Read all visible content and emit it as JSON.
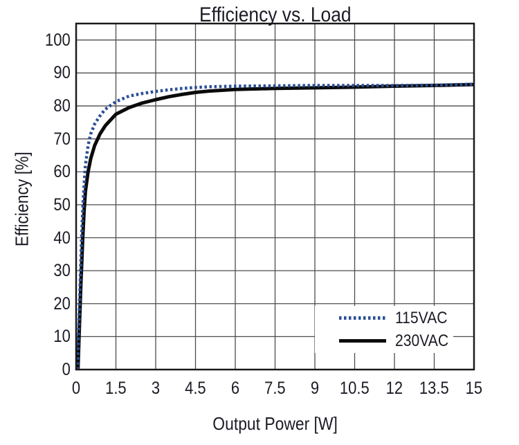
{
  "title": "Efficiency vs. Load",
  "chart_data": {
    "type": "line",
    "title": "Efficiency vs. Load",
    "xlabel": "Output Power [W]",
    "ylabel": "Efficiency [%]",
    "xlim": [
      0,
      15
    ],
    "ylim": [
      0,
      105
    ],
    "x_ticks": [
      0,
      1.5,
      3,
      4.5,
      6,
      7.5,
      9,
      10.5,
      12,
      13.5,
      15
    ],
    "x_tick_labels": [
      "0",
      "1.5",
      "3",
      "4.5",
      "6",
      "7.5",
      "9",
      "10.5",
      "12",
      "13.5",
      "15"
    ],
    "y_ticks": [
      0,
      10,
      20,
      30,
      40,
      50,
      60,
      70,
      80,
      90,
      100
    ],
    "y_tick_labels": [
      "0",
      "10",
      "20",
      "30",
      "40",
      "50",
      "60",
      "70",
      "80",
      "90",
      "100"
    ],
    "grid": true,
    "legend_position": "lower-right",
    "series": [
      {
        "name": "115VAC",
        "style": "dotted",
        "color": "#2b4f96",
        "points": [
          [
            0.05,
            0
          ],
          [
            0.1,
            12
          ],
          [
            0.15,
            26
          ],
          [
            0.2,
            39
          ],
          [
            0.25,
            49
          ],
          [
            0.3,
            56
          ],
          [
            0.35,
            62
          ],
          [
            0.45,
            68
          ],
          [
            0.55,
            71.5
          ],
          [
            0.7,
            74.5
          ],
          [
            0.9,
            77
          ],
          [
            1.1,
            79
          ],
          [
            1.5,
            81.3
          ],
          [
            2,
            83
          ],
          [
            2.5,
            83.8
          ],
          [
            3,
            84.4
          ],
          [
            3.5,
            84.9
          ],
          [
            4,
            85.3
          ],
          [
            4.5,
            85.6
          ],
          [
            5,
            85.8
          ],
          [
            6,
            86.0
          ],
          [
            7.5,
            86.1
          ],
          [
            9,
            86.2
          ],
          [
            10.5,
            86.2
          ],
          [
            12,
            86.2
          ],
          [
            13.5,
            86.3
          ],
          [
            15,
            86.6
          ]
        ]
      },
      {
        "name": "230VAC",
        "style": "solid",
        "color": "#0b0b0b",
        "points": [
          [
            0.07,
            0
          ],
          [
            0.12,
            12
          ],
          [
            0.18,
            26
          ],
          [
            0.25,
            40
          ],
          [
            0.3,
            48
          ],
          [
            0.35,
            54
          ],
          [
            0.45,
            60
          ],
          [
            0.55,
            64
          ],
          [
            0.7,
            68
          ],
          [
            0.9,
            71.5
          ],
          [
            1.1,
            74
          ],
          [
            1.5,
            77.5
          ],
          [
            2,
            79.5
          ],
          [
            2.5,
            80.9
          ],
          [
            3,
            81.9
          ],
          [
            3.5,
            82.8
          ],
          [
            4,
            83.5
          ],
          [
            4.5,
            84.1
          ],
          [
            5,
            84.5
          ],
          [
            6,
            85.0
          ],
          [
            7.5,
            85.3
          ],
          [
            9,
            85.5
          ],
          [
            10.5,
            85.7
          ],
          [
            12,
            86.0
          ],
          [
            13.5,
            86.2
          ],
          [
            15,
            86.5
          ]
        ]
      }
    ]
  },
  "colors": {
    "background": "#ffffff",
    "grid": "#4c4c4c",
    "plot_border": "#1a1a1a",
    "text": "#1b1b25"
  }
}
